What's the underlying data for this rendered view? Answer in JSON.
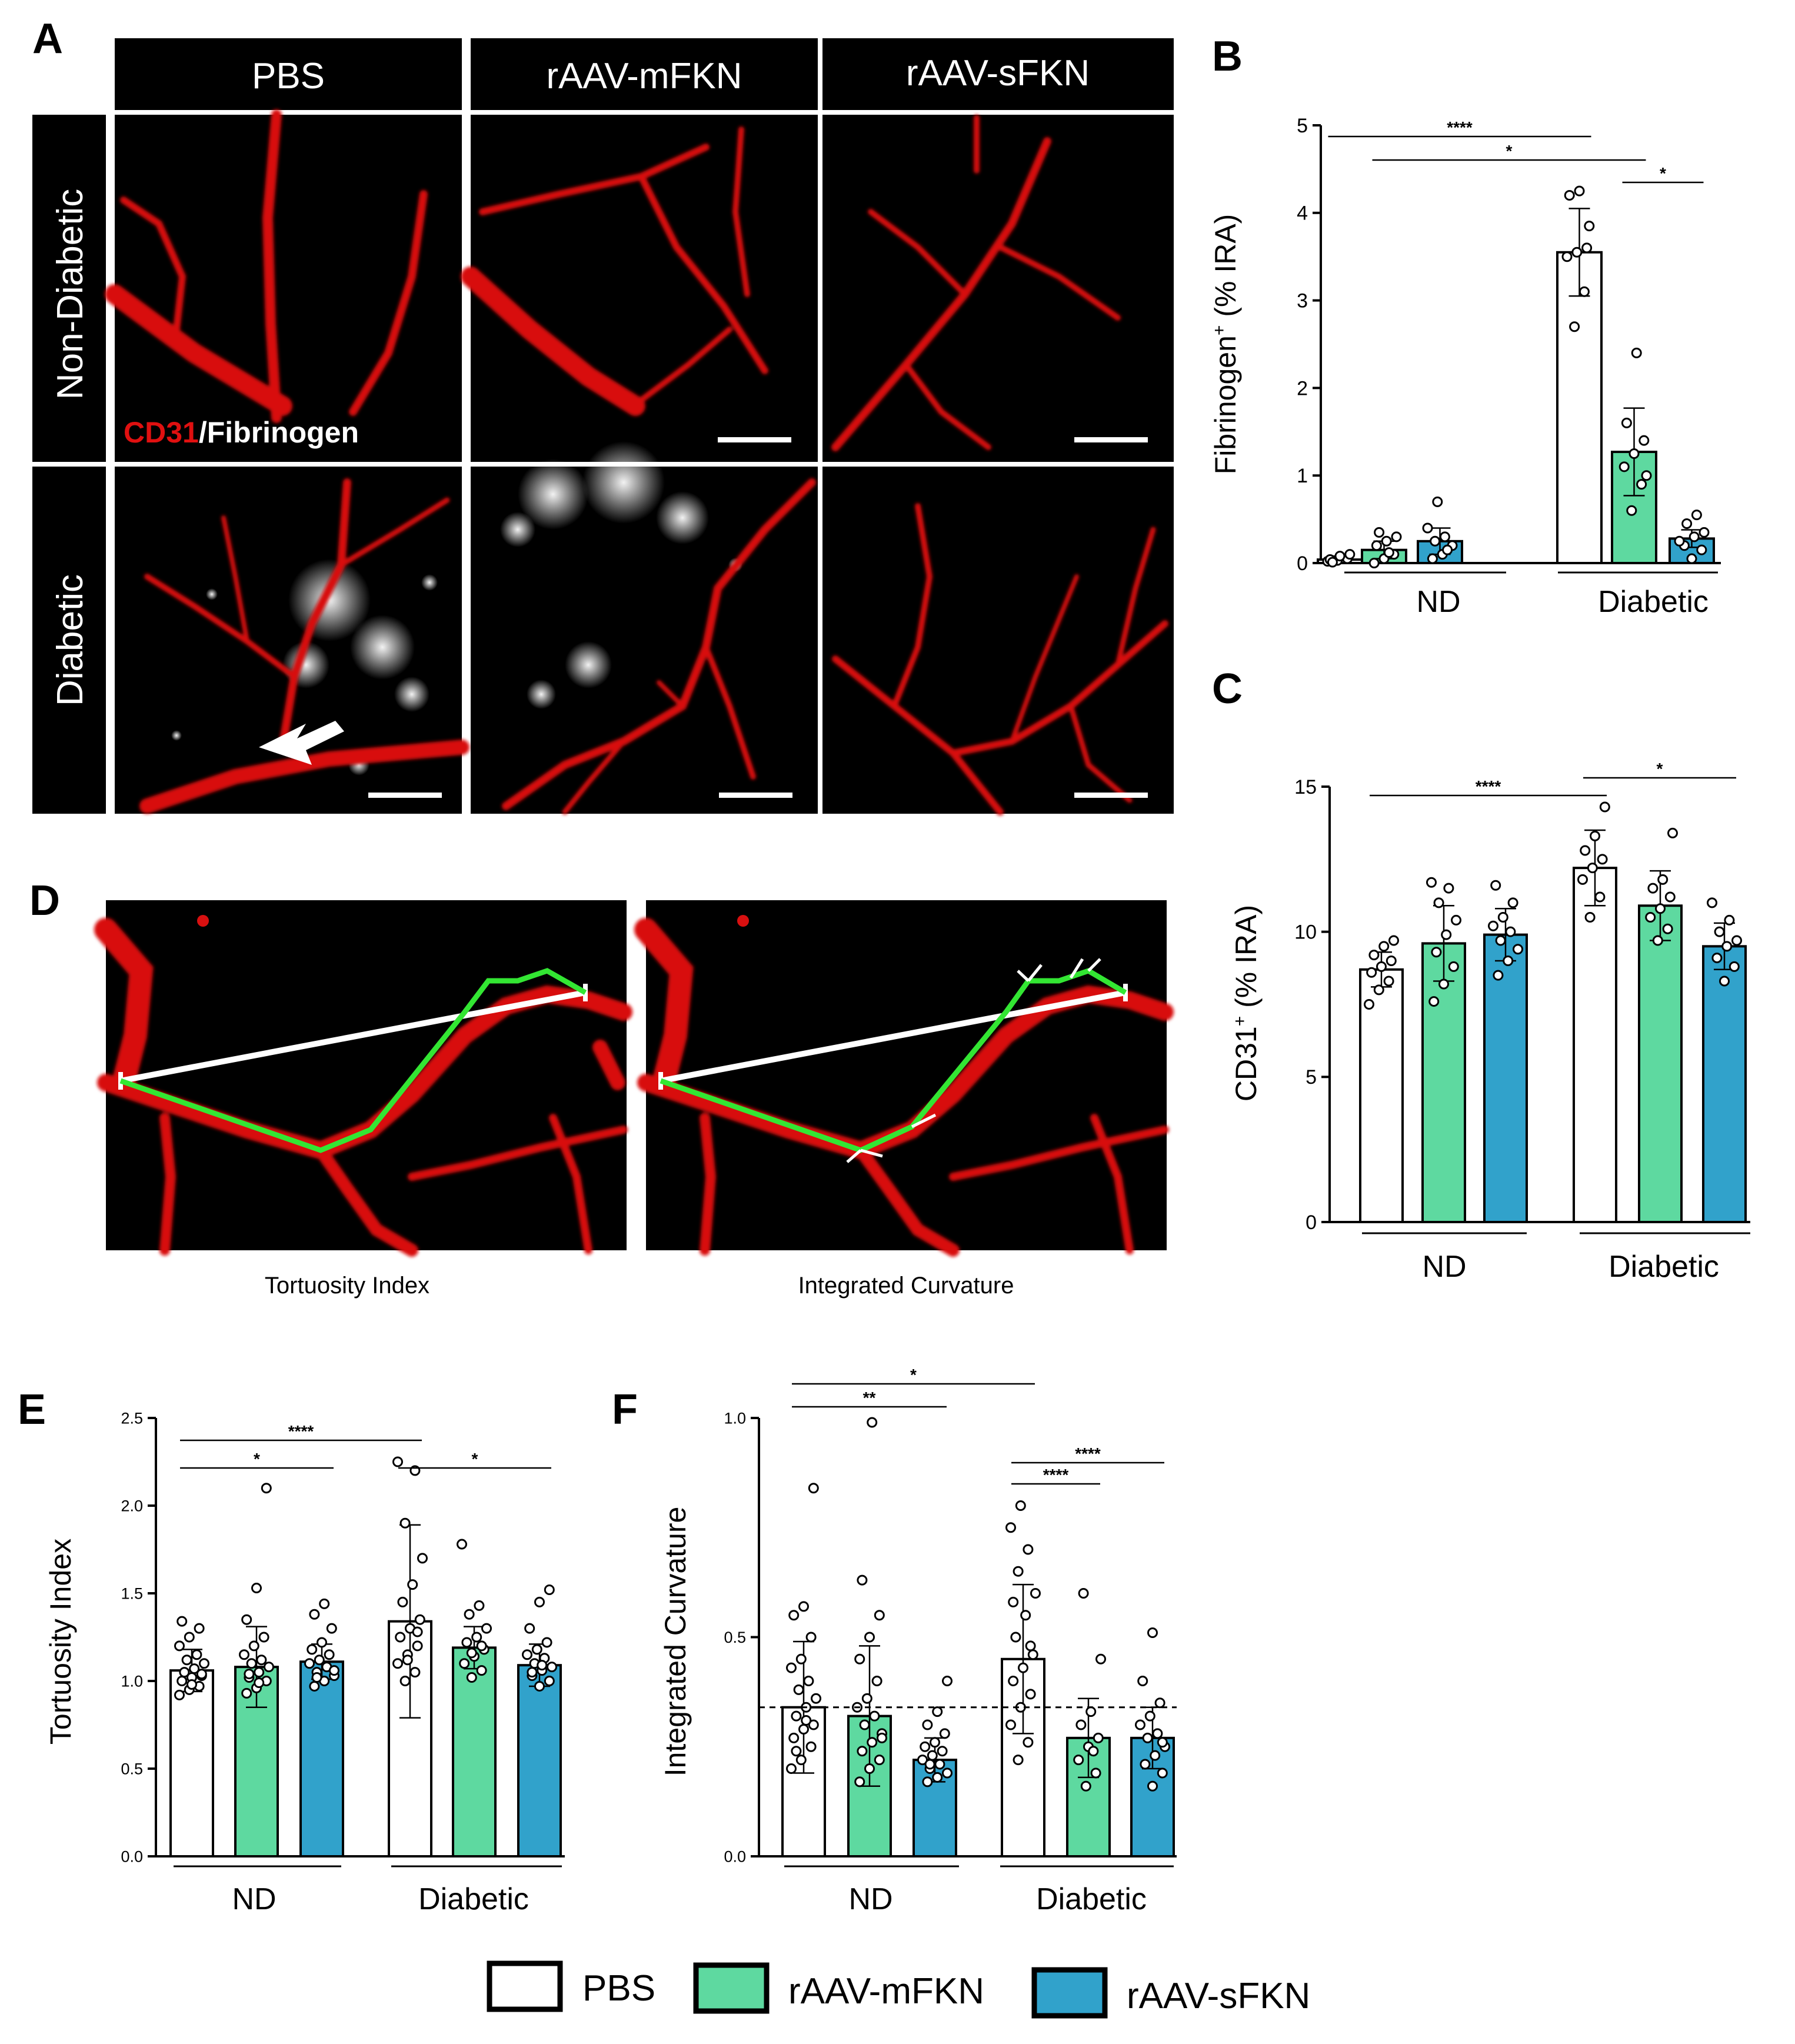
{
  "colors": {
    "pbs": "#ffffff",
    "mfkn": "#5ed9a0",
    "sfkn": "#31a2cb",
    "vessel": "#e01010",
    "fibrinogen": "#e8e8e8",
    "trace_green": "#33e633",
    "trace_white": "#ffffff",
    "header_bg": "#000000"
  },
  "panel_labels": {
    "a": "A",
    "b": "B",
    "c": "C",
    "d": "D",
    "e": "E",
    "f": "F"
  },
  "panel_a": {
    "columns": [
      "PBS",
      "rAAV-mFKN",
      "rAAV-sFKN"
    ],
    "rows": [
      "Non-Diabetic",
      "Diabetic"
    ],
    "stain_cd31": "CD31",
    "stain_fibrinogen": "/Fibrinogen"
  },
  "panel_d": {
    "captions": [
      "Tortuosity Index",
      "Integrated Curvature"
    ]
  },
  "legend": [
    {
      "label": "PBS",
      "color": "#ffffff"
    },
    {
      "label": "rAAV-mFKN",
      "color": "#5ed9a0"
    },
    {
      "label": "rAAV-sFKN",
      "color": "#31a2cb"
    }
  ],
  "chart_data": [
    {
      "id": "B",
      "type": "bar",
      "ylabel_main": "Fibrinogen",
      "ylabel_sup": "+",
      "ylabel_rest": " (% IRA)",
      "group_labels": [
        "ND",
        "Diabetic"
      ],
      "series_names": [
        "PBS",
        "rAAV-mFKN",
        "rAAV-sFKN"
      ],
      "ylim": [
        0,
        5
      ],
      "yticks": [
        "0",
        "1",
        "2",
        "3",
        "4",
        "5"
      ],
      "ytick_values": [
        0,
        1,
        2,
        3,
        4,
        5
      ],
      "values": [
        0.04,
        0.15,
        0.25,
        3.55,
        1.27,
        0.28
      ],
      "errors": [
        0.04,
        0.1,
        0.15,
        0.5,
        0.5,
        0.1
      ],
      "points": [
        [
          0.02,
          0.03,
          0.05,
          0.04,
          0.08,
          0.1,
          0.01
        ],
        [
          0.0,
          0.05,
          0.1,
          0.2,
          0.25,
          0.3,
          0.35,
          0.12
        ],
        [
          0.05,
          0.1,
          0.2,
          0.25,
          0.3,
          0.4,
          0.7,
          0.15
        ],
        [
          2.7,
          3.1,
          3.5,
          3.55,
          3.6,
          4.2,
          4.25,
          3.85
        ],
        [
          0.6,
          0.9,
          1.1,
          1.25,
          1.4,
          1.6,
          2.4,
          1.0
        ],
        [
          0.05,
          0.15,
          0.2,
          0.3,
          0.35,
          0.45,
          0.55,
          0.25
        ]
      ],
      "significance": [
        {
          "from": 0,
          "to": 3,
          "label": "****"
        },
        {
          "from": 1,
          "to": 4,
          "label": "*"
        },
        {
          "from": 4,
          "to": 5,
          "label": "*"
        }
      ]
    },
    {
      "id": "C",
      "type": "bar",
      "ylabel_main": "CD31",
      "ylabel_sup": "+",
      "ylabel_rest": " (% IRA)",
      "group_labels": [
        "ND",
        "Diabetic"
      ],
      "series_names": [
        "PBS",
        "rAAV-mFKN",
        "rAAV-sFKN"
      ],
      "ylim": [
        0,
        15
      ],
      "yticks": [
        "0",
        "5",
        "10",
        "15"
      ],
      "ytick_values": [
        0,
        5,
        10,
        15
      ],
      "values": [
        8.7,
        9.6,
        9.9,
        12.2,
        10.9,
        9.5
      ],
      "errors": [
        0.6,
        1.3,
        0.9,
        1.3,
        1.2,
        0.8
      ],
      "points": [
        [
          7.5,
          8.0,
          8.3,
          8.6,
          8.8,
          9.0,
          9.2,
          9.5,
          9.7
        ],
        [
          7.6,
          8.2,
          8.8,
          9.3,
          9.9,
          10.4,
          11.0,
          11.5,
          11.7
        ],
        [
          8.5,
          9.0,
          9.4,
          9.7,
          10.0,
          10.2,
          10.5,
          11.0,
          11.6
        ],
        [
          10.5,
          11.2,
          11.8,
          12.2,
          12.5,
          12.8,
          13.3,
          14.3
        ],
        [
          9.7,
          10.1,
          10.5,
          10.8,
          11.2,
          11.5,
          11.8,
          13.4
        ],
        [
          8.3,
          8.8,
          9.1,
          9.5,
          9.7,
          10.0,
          10.4,
          11.0
        ]
      ],
      "significance": [
        {
          "from": 0,
          "to": 3,
          "label": "****"
        },
        {
          "from": 3,
          "to": 5,
          "label": "*"
        }
      ]
    },
    {
      "id": "E",
      "type": "bar",
      "ylabel_main": "Tortuosity Index",
      "ylabel_sup": "",
      "ylabel_rest": "",
      "group_labels": [
        "ND",
        "Diabetic"
      ],
      "series_names": [
        "PBS",
        "rAAV-mFKN",
        "rAAV-sFKN"
      ],
      "ylim": [
        0,
        2.5
      ],
      "yticks": [
        "0.0",
        "0.5",
        "1.0",
        "1.5",
        "2.0",
        "2.5"
      ],
      "ytick_values": [
        0,
        0.5,
        1.0,
        1.5,
        2.0,
        2.5
      ],
      "values": [
        1.06,
        1.08,
        1.11,
        1.34,
        1.19,
        1.09
      ],
      "errors": [
        0.12,
        0.23,
        0.1,
        0.55,
        0.12,
        0.12
      ],
      "points": [
        [
          0.92,
          0.95,
          0.97,
          1.0,
          1.02,
          1.03,
          1.05,
          1.07,
          1.1,
          1.12,
          1.15,
          1.2,
          1.25,
          1.3,
          1.34,
          0.98,
          1.04
        ],
        [
          0.93,
          0.96,
          1.0,
          1.02,
          1.05,
          1.08,
          1.1,
          1.12,
          1.15,
          1.2,
          1.25,
          1.35,
          1.53,
          2.1,
          1.04,
          0.99
        ],
        [
          0.97,
          1.0,
          1.03,
          1.05,
          1.08,
          1.1,
          1.12,
          1.15,
          1.18,
          1.22,
          1.3,
          1.38,
          1.44,
          1.06,
          1.02
        ],
        [
          1.0,
          1.05,
          1.1,
          1.15,
          1.2,
          1.25,
          1.3,
          1.35,
          1.45,
          1.55,
          1.7,
          1.9,
          2.2,
          2.25,
          1.12,
          1.28
        ],
        [
          1.02,
          1.06,
          1.1,
          1.14,
          1.18,
          1.22,
          1.25,
          1.3,
          1.38,
          1.43,
          1.78,
          1.16,
          1.2
        ],
        [
          0.97,
          1.0,
          1.03,
          1.06,
          1.08,
          1.1,
          1.13,
          1.15,
          1.18,
          1.22,
          1.3,
          1.45,
          1.52,
          1.05,
          1.09
        ]
      ],
      "significance": [
        {
          "from": 0,
          "to": 3,
          "label": "****"
        },
        {
          "from": 0,
          "to": 2,
          "label": "*"
        },
        {
          "from": 3,
          "to": 5,
          "label": "*"
        }
      ]
    },
    {
      "id": "F",
      "type": "bar",
      "ylabel_main": "Integrated Curvature",
      "ylabel_sup": "",
      "ylabel_rest": "",
      "group_labels": [
        "ND",
        "Diabetic"
      ],
      "series_names": [
        "PBS",
        "rAAV-mFKN",
        "rAAV-sFKN"
      ],
      "ylim": [
        0,
        1.0
      ],
      "yticks": [
        "0.0",
        "0.5",
        "1.0"
      ],
      "ytick_values": [
        0,
        0.5,
        1.0
      ],
      "values": [
        0.34,
        0.32,
        0.22,
        0.45,
        0.27,
        0.27
      ],
      "errors": [
        0.15,
        0.16,
        0.05,
        0.17,
        0.09,
        0.07
      ],
      "reference_line": 0.34,
      "points": [
        [
          0.2,
          0.22,
          0.25,
          0.27,
          0.29,
          0.3,
          0.32,
          0.34,
          0.36,
          0.38,
          0.4,
          0.43,
          0.45,
          0.5,
          0.55,
          0.57,
          0.84,
          0.24,
          0.31
        ],
        [
          0.17,
          0.2,
          0.22,
          0.24,
          0.26,
          0.28,
          0.3,
          0.32,
          0.34,
          0.36,
          0.4,
          0.45,
          0.5,
          0.55,
          0.63,
          0.99,
          0.27
        ],
        [
          0.17,
          0.18,
          0.19,
          0.2,
          0.21,
          0.22,
          0.23,
          0.24,
          0.25,
          0.26,
          0.28,
          0.3,
          0.33,
          0.4,
          0.21
        ],
        [
          0.22,
          0.26,
          0.3,
          0.34,
          0.37,
          0.4,
          0.43,
          0.46,
          0.5,
          0.55,
          0.6,
          0.65,
          0.7,
          0.75,
          0.8,
          0.48,
          0.58
        ],
        [
          0.16,
          0.19,
          0.22,
          0.25,
          0.27,
          0.3,
          0.33,
          0.45,
          0.6,
          0.24
        ],
        [
          0.16,
          0.19,
          0.21,
          0.23,
          0.25,
          0.27,
          0.28,
          0.3,
          0.32,
          0.35,
          0.4,
          0.51,
          0.26
        ]
      ],
      "significance": [
        {
          "from": 0,
          "to": 3,
          "label": "*"
        },
        {
          "from": 0,
          "to": 2,
          "label": "**"
        },
        {
          "from": 3,
          "to": 5,
          "label": "****"
        },
        {
          "from": 3,
          "to": 4,
          "label": "****"
        }
      ]
    }
  ]
}
